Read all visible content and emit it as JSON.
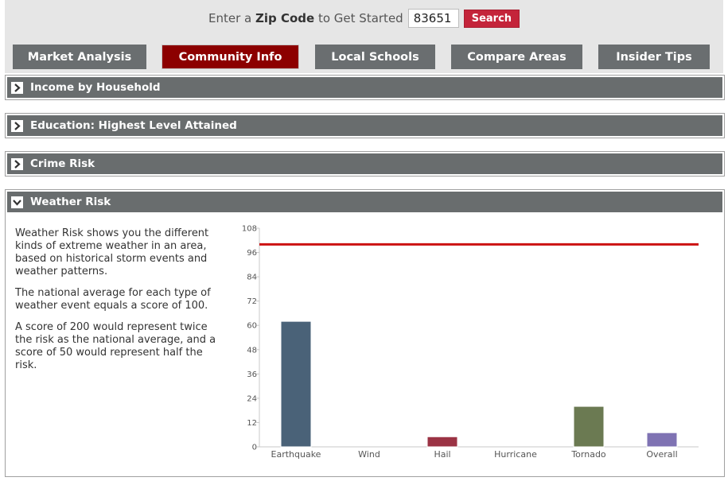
{
  "zip_prompt": {
    "prefix": "Enter a",
    "bold": "Zip Code",
    "suffix": "to Get Started",
    "value": "83651",
    "search_label": "Search"
  },
  "tabs": [
    {
      "label": "Market Analysis",
      "active": false
    },
    {
      "label": "Community Info",
      "active": true
    },
    {
      "label": "Local Schools",
      "active": false
    },
    {
      "label": "Compare Areas",
      "active": false
    },
    {
      "label": "Insider Tips",
      "active": false
    }
  ],
  "panels": [
    {
      "title": "Income by Household",
      "expanded": false
    },
    {
      "title": "Education: Highest Level Attained",
      "expanded": false
    },
    {
      "title": "Crime Risk",
      "expanded": false
    },
    {
      "title": "Weather Risk",
      "expanded": true
    }
  ],
  "weather": {
    "paragraphs": [
      "Weather Risk shows you the different kinds of extreme weather in an area, based on historical storm events and weather patterns.",
      "The national average for each type of weather event equals a score of 100.",
      "A score of 200 would represent twice the risk as the national average, and a score of 50 would represent half the risk."
    ]
  },
  "colors": {
    "accent": "#8c0000",
    "tab": "#6a6e70",
    "search": "#c4243a",
    "reference_line": "#cc1111"
  },
  "chart_data": {
    "type": "bar",
    "title": "",
    "xlabel": "",
    "ylabel": "",
    "categories": [
      "Earthquake",
      "Wind",
      "Hail",
      "Hurricane",
      "Tornado",
      "Overall"
    ],
    "values": [
      62,
      0,
      5,
      0,
      20,
      7
    ],
    "bar_colors": [
      "#4a6278",
      "#4a6278",
      "#9b3344",
      "#9b3344",
      "#6b7a52",
      "#7f73b3"
    ],
    "ylim": [
      0,
      108
    ],
    "yticks": [
      0,
      12,
      24,
      36,
      48,
      60,
      72,
      84,
      96,
      108
    ],
    "reference_line": 100,
    "grid": false
  }
}
